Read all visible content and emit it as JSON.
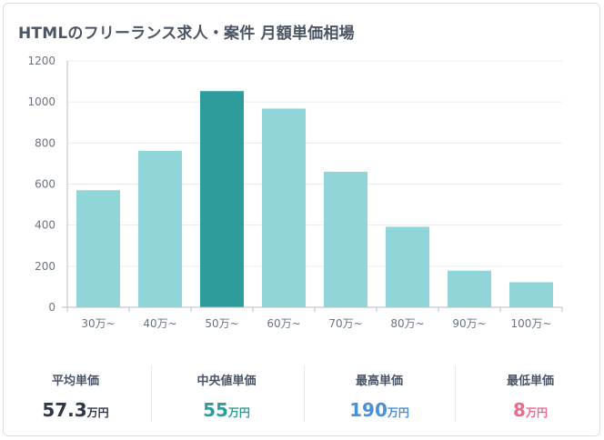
{
  "title": "HTMLのフリーランス求人・案件 月額単価相場",
  "chart_data": {
    "type": "bar",
    "categories": [
      "30万~",
      "40万~",
      "50万~",
      "60万~",
      "70万~",
      "80万~",
      "90万~",
      "100万~"
    ],
    "values": [
      570,
      762,
      1053,
      968,
      660,
      392,
      178,
      122
    ],
    "highlight_index": 2,
    "y_ticks": [
      "0",
      "200",
      "400",
      "600",
      "800",
      "1000",
      "1200"
    ],
    "ylim": [
      0,
      1200
    ],
    "title": "HTMLのフリーランス求人・案件 月額単価相場",
    "xlabel": "",
    "ylabel": "",
    "colors": {
      "bar": "#90d5d7",
      "highlight": "#2f9c9c",
      "grid": "#e8ebee",
      "axis": "#b8bec6",
      "tick_text": "#6b7280"
    }
  },
  "stats": [
    {
      "label": "平均単価",
      "value": "57.3",
      "unit": "万円",
      "color": "#2d3748"
    },
    {
      "label": "中央値単価",
      "value": "55",
      "unit": "万円",
      "color": "#2f9c9c"
    },
    {
      "label": "最高単価",
      "value": "190",
      "unit": "万円",
      "color": "#4a90d9"
    },
    {
      "label": "最低単価",
      "value": "8",
      "unit": "万円",
      "color": "#ec6a8c"
    }
  ]
}
